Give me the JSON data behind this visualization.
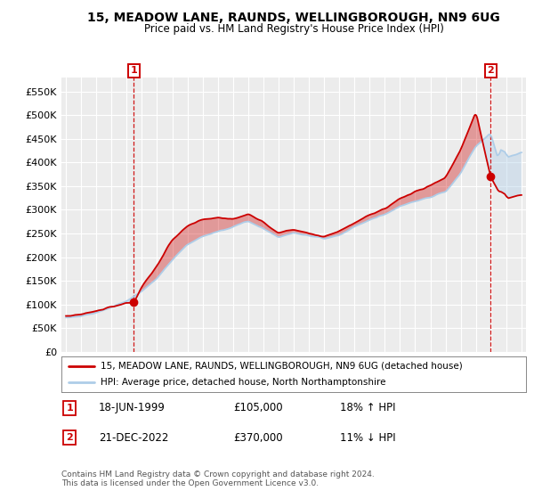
{
  "title": "15, MEADOW LANE, RAUNDS, WELLINGBOROUGH, NN9 6UG",
  "subtitle": "Price paid vs. HM Land Registry's House Price Index (HPI)",
  "ylabel_ticks": [
    "£0",
    "£50K",
    "£100K",
    "£150K",
    "£200K",
    "£250K",
    "£300K",
    "£350K",
    "£400K",
    "£450K",
    "£500K",
    "£550K"
  ],
  "ytick_values": [
    0,
    50000,
    100000,
    150000,
    200000,
    250000,
    300000,
    350000,
    400000,
    450000,
    500000,
    550000
  ],
  "ylim": [
    0,
    580000
  ],
  "background_color": "#ffffff",
  "plot_bg_color": "#ececec",
  "grid_color": "#ffffff",
  "legend_line1": "15, MEADOW LANE, RAUNDS, WELLINGBOROUGH, NN9 6UG (detached house)",
  "legend_line2": "HPI: Average price, detached house, North Northamptonshire",
  "annotation1_date": "18-JUN-1999",
  "annotation1_price": "£105,000",
  "annotation1_hpi": "18% ↑ HPI",
  "annotation2_date": "21-DEC-2022",
  "annotation2_price": "£370,000",
  "annotation2_hpi": "11% ↓ HPI",
  "footer": "Contains HM Land Registry data © Crown copyright and database right 2024.\nThis data is licensed under the Open Government Licence v3.0.",
  "sale1_x": 1999.46,
  "sale1_y": 105000,
  "sale2_x": 2022.97,
  "sale2_y": 370000,
  "hpi_color": "#aecde8",
  "property_color": "#cc0000",
  "sale_marker_color": "#cc0000",
  "xlim_min": 1994.7,
  "xlim_max": 2025.3
}
